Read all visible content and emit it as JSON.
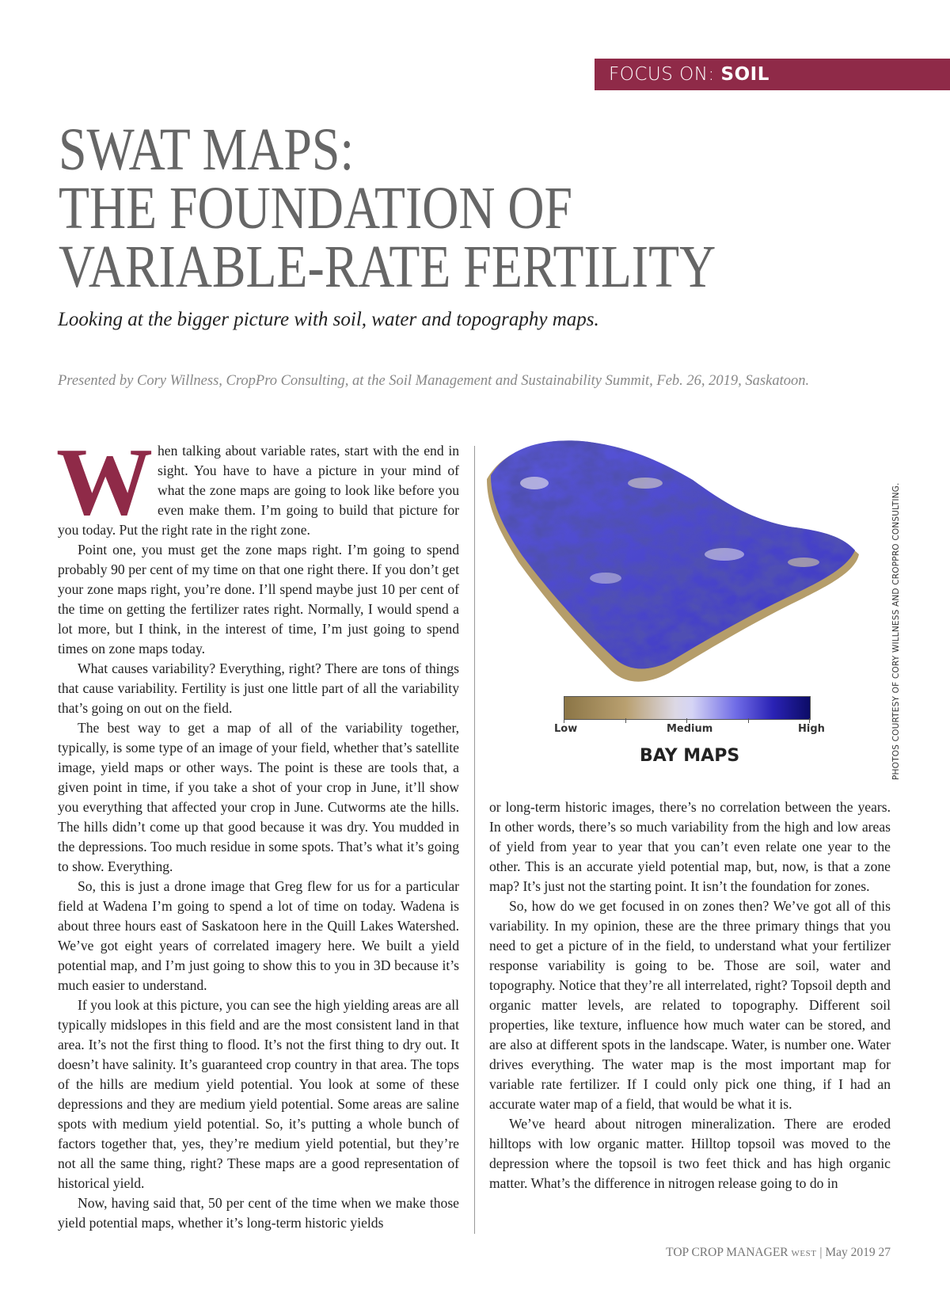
{
  "section_band": {
    "prefix": "FOCUS ON: ",
    "topic": "SOIL",
    "color": "#8f2a48"
  },
  "title_lines": [
    "SWAT MAPS:",
    "THE FOUNDATION OF",
    "VARIABLE-RATE FERTILITY"
  ],
  "subtitle": "Looking at the bigger picture with soil, water and topography maps.",
  "presenter": "Presented by Cory Willness, CropPro Consulting, at the Soil Management and Sustainability Summit, Feb. 26, 2019, Saskatoon.",
  "body": {
    "drop_cap": "W",
    "p1": "hen talking about variable rates, start with the end in sight. You have to have a picture in your mind of what the zone maps are going to look like before you even make them. I’m going to build that picture for you today. Put the right rate in the right zone.",
    "p2": "Point one, you must get the zone maps right. I’m going to spend probably 90 per cent of my time on that one right there. If you don’t get your zone maps right, you’re done. I’ll spend maybe just 10 per cent of the time on getting the fertilizer rates right. Normally, I would spend a lot more, but I think, in the interest of time, I’m just going to spend times on zone maps today.",
    "p3": "What causes variability? Everything, right? There are tons of things that cause variability. Fertility is just one little part of all the variability that’s going on out on the field.",
    "p4": "The best way to get a map of all of the variability together, typically, is some type of an image of your field, whether that’s satellite image, yield maps or other ways. The point is these are tools that, a given point in time, if you take a shot of your crop in June, it’ll show you everything that affected your crop in June. Cutworms ate the hills. The hills didn’t come up that good because it was dry. You mudded in the depressions. Too much residue in some spots. That’s what it’s going to show. Everything.",
    "p5": "So, this is just a drone image that Greg flew for us for a particular field at Wadena I’m going to spend a lot of time on today. Wadena is about three hours east of Saskatoon here in the Quill Lakes Watershed. We’ve got eight years of correlated imagery here. We built a yield potential map, and I’m just going to show this to you in 3D because it’s much easier to understand.",
    "p6": "If you look at this picture, you can see the high yielding areas are all typically midslopes in this field and are the most consistent land in that area. It’s not the first thing to flood. It’s not the first thing to dry out. It doesn’t have salinity. It’s guaranteed crop country in that area. The tops of the hills are medium yield potential. You look at some of these depressions and they are medium yield potential. Some areas are saline spots with medium yield potential. So, it’s putting a whole bunch of factors together that, yes, they’re medium yield potential, but they’re not all the same thing, right? These maps are a good representation of historical yield.",
    "p7a": "Now, having said that, 50 per cent of the time when we make those yield potential maps, whether it’s long-term historic yields",
    "p7b": "or long-term historic images, there’s no correlation between the years. In other words, there’s so much variability from the high and low areas of yield from year to year that you can’t even relate one year to the other. This is an accurate yield potential map, but, now, is that a zone map? It’s just not the starting point. It isn’t the foundation for zones.",
    "p8": "So, how do we get focused in on zones then? We’ve got all of this variability. In my opinion, these are the three primary things that you need to get a picture of in the field, to understand what your fertilizer response variability is going to be. Those are soil, water and topography. Notice that they’re all interrelated, right? Topsoil depth and organic matter levels, are related to topography. Different soil properties, like texture, influence how much water can be stored, and are also at different spots in the landscape. Water, is number one. Water drives everything. The water map is the most important map for variable rate fertilizer. If I could only pick one thing, if I had an accurate water map of a field, that would be what it is.",
    "p9": "We’ve heard about nitrogen mineralization. There are eroded hilltops with low organic matter. Hilltop topsoil was moved to the depression where the topsoil is two feet thick and has high organic matter. What’s the difference in nitrogen release going to do in"
  },
  "figure": {
    "legend": {
      "low": "Low",
      "medium": "Medium",
      "high": "High",
      "colors": [
        "#8b7546",
        "#d5d4f5",
        "#0c0c66"
      ]
    },
    "title": "BAY MAPS",
    "credit": "PHOTOS COURTESY OF CORY WILLNESS AND CROPPRO CONSULTING."
  },
  "footer": {
    "magazine": "TOP CROP MANAGER",
    "edition": "WEST",
    "separator": "|",
    "issue": "May 2019",
    "page": "27"
  }
}
